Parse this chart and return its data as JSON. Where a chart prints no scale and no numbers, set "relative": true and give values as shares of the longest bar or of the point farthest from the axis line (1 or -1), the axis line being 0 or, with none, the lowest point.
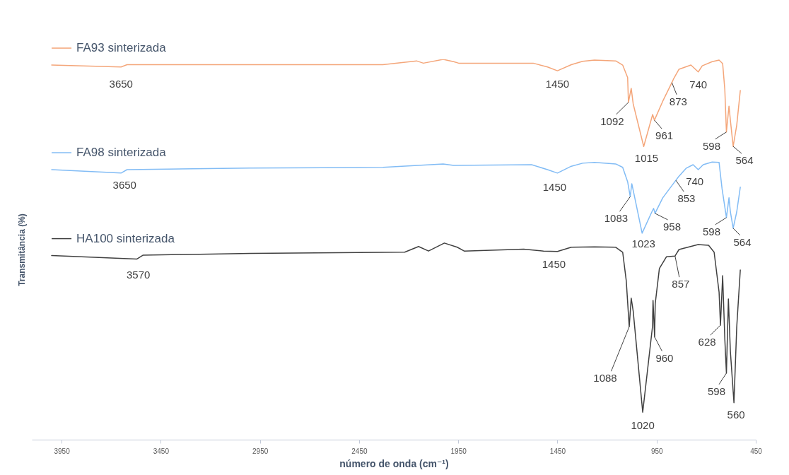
{
  "chart_data": {
    "type": "line",
    "relative": true,
    "xlabel": "número de onda (cm⁻¹)",
    "ylabel": "Transmitância (%)",
    "xlim": [
      4100,
      450
    ],
    "xticks": [
      3950,
      3450,
      2950,
      2450,
      1950,
      1450,
      950,
      450
    ],
    "legend": "top left",
    "marker": "none",
    "line_style": "solid",
    "series": [
      {
        "name": "FA93 sinterizada",
        "color": "#f4a67a",
        "x": [
          4000,
          3650,
          3620,
          3000,
          2330,
          2160,
          2126,
          2026,
          1973,
          1948,
          1572,
          1500,
          1450,
          1380,
          1323,
          1263,
          1156,
          1121,
          1096,
          1092,
          1078,
          1068,
          1015,
          970,
          961,
          919,
          873,
          865,
          837,
          777,
          740,
          720,
          670,
          635,
          617,
          606,
          598,
          585,
          578,
          564,
          546,
          528
        ],
        "values": [
          0.985,
          0.98,
          0.986,
          0.986,
          0.986,
          0.996,
          0.99,
          1.0,
          0.994,
          0.99,
          0.99,
          0.98,
          0.97,
          0.986,
          0.995,
          0.998,
          0.996,
          0.985,
          0.952,
          0.887,
          0.924,
          0.883,
          0.771,
          0.855,
          0.84,
          0.89,
          0.939,
          0.948,
          0.974,
          0.985,
          0.967,
          0.983,
          0.994,
          0.998,
          0.989,
          0.92,
          0.809,
          0.877,
          0.84,
          0.771,
          0.827,
          0.918
        ]
      },
      {
        "name": "FA98 sinterizada",
        "color": "#82bcf5",
        "x": [
          4000,
          3650,
          3620,
          3000,
          2330,
          2026,
          1973,
          1580,
          1500,
          1450,
          1380,
          1323,
          1263,
          1156,
          1121,
          1096,
          1083,
          1075,
          1060,
          1023,
          974,
          965,
          958,
          919,
          853,
          840,
          800,
          766,
          740,
          715,
          670,
          635,
          620,
          598,
          585,
          578,
          564,
          546,
          528
        ],
        "values": [
          0.71,
          0.701,
          0.71,
          0.714,
          0.716,
          0.725,
          0.721,
          0.723,
          0.71,
          0.701,
          0.719,
          0.727,
          0.729,
          0.725,
          0.716,
          0.678,
          0.639,
          0.673,
          0.636,
          0.543,
          0.599,
          0.608,
          0.595,
          0.636,
          0.682,
          0.691,
          0.714,
          0.723,
          0.71,
          0.723,
          0.73,
          0.729,
          0.66,
          0.584,
          0.636,
          0.599,
          0.556,
          0.599,
          0.664
        ]
      },
      {
        "name": "HA100 sinterizada",
        "color": "#404040",
        "x": [
          4000,
          3570,
          3540,
          3000,
          2220,
          2150,
          2100,
          2020,
          1955,
          1920,
          1620,
          1520,
          1450,
          1380,
          1263,
          1156,
          1121,
          1103,
          1088,
          1078,
          1068,
          1020,
          971,
          968,
          960,
          957,
          936,
          900,
          857,
          837,
          741,
          688,
          660,
          635,
          628,
          617,
          606,
          598,
          588,
          578,
          560,
          546,
          528
        ],
        "values": [
          0.484,
          0.475,
          0.485,
          0.49,
          0.493,
          0.508,
          0.496,
          0.517,
          0.506,
          0.496,
          0.501,
          0.496,
          0.495,
          0.506,
          0.507,
          0.506,
          0.493,
          0.418,
          0.297,
          0.372,
          0.338,
          0.072,
          0.296,
          0.366,
          0.27,
          0.357,
          0.45,
          0.481,
          0.483,
          0.5,
          0.513,
          0.511,
          0.493,
          0.388,
          0.301,
          0.431,
          0.264,
          0.175,
          0.37,
          0.232,
          0.097,
          0.296,
          0.446
        ]
      }
    ],
    "annotations": [
      {
        "text": "3650",
        "x": 3650,
        "y": 0.98
      },
      {
        "text": "1450",
        "x": 1450,
        "y": 0.97
      },
      {
        "text": "1092",
        "x": 1092,
        "y": 0.887
      },
      {
        "text": "1015",
        "x": 1015,
        "y": 0.771
      },
      {
        "text": "961",
        "x": 961,
        "y": 0.84
      },
      {
        "text": "873",
        "x": 873,
        "y": 0.939
      },
      {
        "text": "740",
        "x": 740,
        "y": 0.967
      },
      {
        "text": "598",
        "x": 598,
        "y": 0.809
      },
      {
        "text": "564",
        "x": 564,
        "y": 0.771
      },
      {
        "text": "3650",
        "x": 3650,
        "y": 0.701
      },
      {
        "text": "1450",
        "x": 1450,
        "y": 0.701
      },
      {
        "text": "1083",
        "x": 1083,
        "y": 0.639
      },
      {
        "text": "1023",
        "x": 1023,
        "y": 0.543
      },
      {
        "text": "958",
        "x": 958,
        "y": 0.595
      },
      {
        "text": "853",
        "x": 853,
        "y": 0.682
      },
      {
        "text": "740",
        "x": 740,
        "y": 0.71
      },
      {
        "text": "598",
        "x": 598,
        "y": 0.584
      },
      {
        "text": "564",
        "x": 564,
        "y": 0.556
      },
      {
        "text": "3570",
        "x": 3570,
        "y": 0.475
      },
      {
        "text": "1450",
        "x": 1450,
        "y": 0.495
      },
      {
        "text": "1088",
        "x": 1088,
        "y": 0.297
      },
      {
        "text": "1020",
        "x": 1020,
        "y": 0.072
      },
      {
        "text": "960",
        "x": 960,
        "y": 0.27
      },
      {
        "text": "857",
        "x": 857,
        "y": 0.483
      },
      {
        "text": "628",
        "x": 628,
        "y": 0.301
      },
      {
        "text": "598",
        "x": 598,
        "y": 0.175
      },
      {
        "text": "560",
        "x": 560,
        "y": 0.097
      }
    ]
  }
}
